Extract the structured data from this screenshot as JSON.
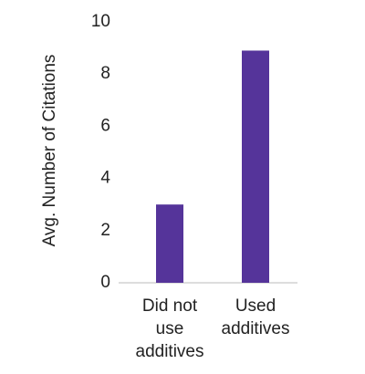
{
  "chart_data": {
    "type": "bar",
    "y_label": "Avg. Number of Citations",
    "categories": [
      "Did not use additives",
      "Used additives"
    ],
    "values": [
      3,
      8.9
    ],
    "color": "#55349a",
    "ylim": [
      0,
      10
    ],
    "yticks": [
      0,
      2,
      4,
      6,
      8,
      10
    ],
    "grid": false
  }
}
